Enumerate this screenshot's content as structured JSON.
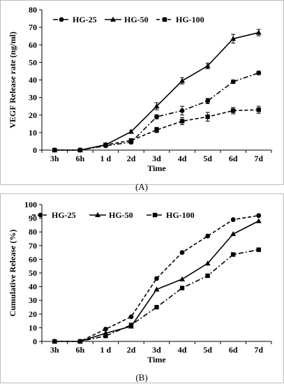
{
  "chart_data": [
    {
      "type": "line",
      "panel_label": "(A)",
      "title": "",
      "xlabel": "Time",
      "ylabel": "VEGF Release rate (ng/ml)",
      "categories": [
        "3h",
        "6h",
        "1 d",
        "2d",
        "3d",
        "4d",
        "5d",
        "6d",
        "7d"
      ],
      "ylim": [
        0,
        80
      ],
      "yticks": [
        0,
        10,
        20,
        30,
        40,
        50,
        60,
        70,
        80
      ],
      "grid": false,
      "legend_position": "top-left",
      "error_bars": true,
      "series": [
        {
          "name": "HG-25",
          "marker": "circle",
          "dash": "dash-dot",
          "values": [
            0,
            0,
            2.5,
            4.5,
            19,
            22.5,
            28,
            39,
            44
          ],
          "errors": [
            0,
            0,
            0.5,
            0.8,
            1.2,
            2.5,
            1.5,
            1.0,
            1.0
          ]
        },
        {
          "name": "HG-50",
          "marker": "triangle",
          "dash": "solid",
          "values": [
            0,
            0,
            3,
            10.5,
            25,
            39.5,
            48,
            63.5,
            67
          ],
          "errors": [
            0,
            0,
            0.5,
            0.8,
            2.0,
            1.8,
            1.6,
            2.5,
            1.8
          ]
        },
        {
          "name": "HG-100",
          "marker": "square",
          "dash": "dashed",
          "values": [
            0,
            0,
            3,
            5.5,
            11.5,
            16.5,
            19,
            22.5,
            23
          ],
          "errors": [
            0,
            0,
            0.4,
            0.8,
            1.5,
            2.0,
            2.5,
            1.8,
            2.0
          ]
        }
      ]
    },
    {
      "type": "line",
      "panel_label": "(B)",
      "title": "",
      "xlabel": "Time",
      "ylabel": "Cumulative Release (%)",
      "categories": [
        "3h",
        "6h",
        "1 d",
        "2d",
        "3d",
        "4d",
        "5d",
        "6d",
        "7d"
      ],
      "ylim": [
        0,
        100
      ],
      "yticks": [
        0,
        10,
        20,
        30,
        40,
        50,
        60,
        70,
        80,
        90,
        100
      ],
      "grid": false,
      "legend_position": "top-left",
      "error_bars": false,
      "series": [
        {
          "name": "HG-25",
          "marker": "circle",
          "dash": "dashed",
          "values": [
            0,
            0,
            9,
            18,
            46,
            65,
            77,
            89,
            92
          ]
        },
        {
          "name": "HG-50",
          "marker": "triangle",
          "dash": "solid",
          "values": [
            0,
            0,
            6,
            11,
            38,
            45.5,
            57,
            78.5,
            88
          ]
        },
        {
          "name": "HG-100",
          "marker": "square",
          "dash": "dash-dot",
          "values": [
            0,
            0,
            4,
            12,
            25,
            39,
            48,
            63.5,
            67
          ]
        }
      ]
    }
  ]
}
